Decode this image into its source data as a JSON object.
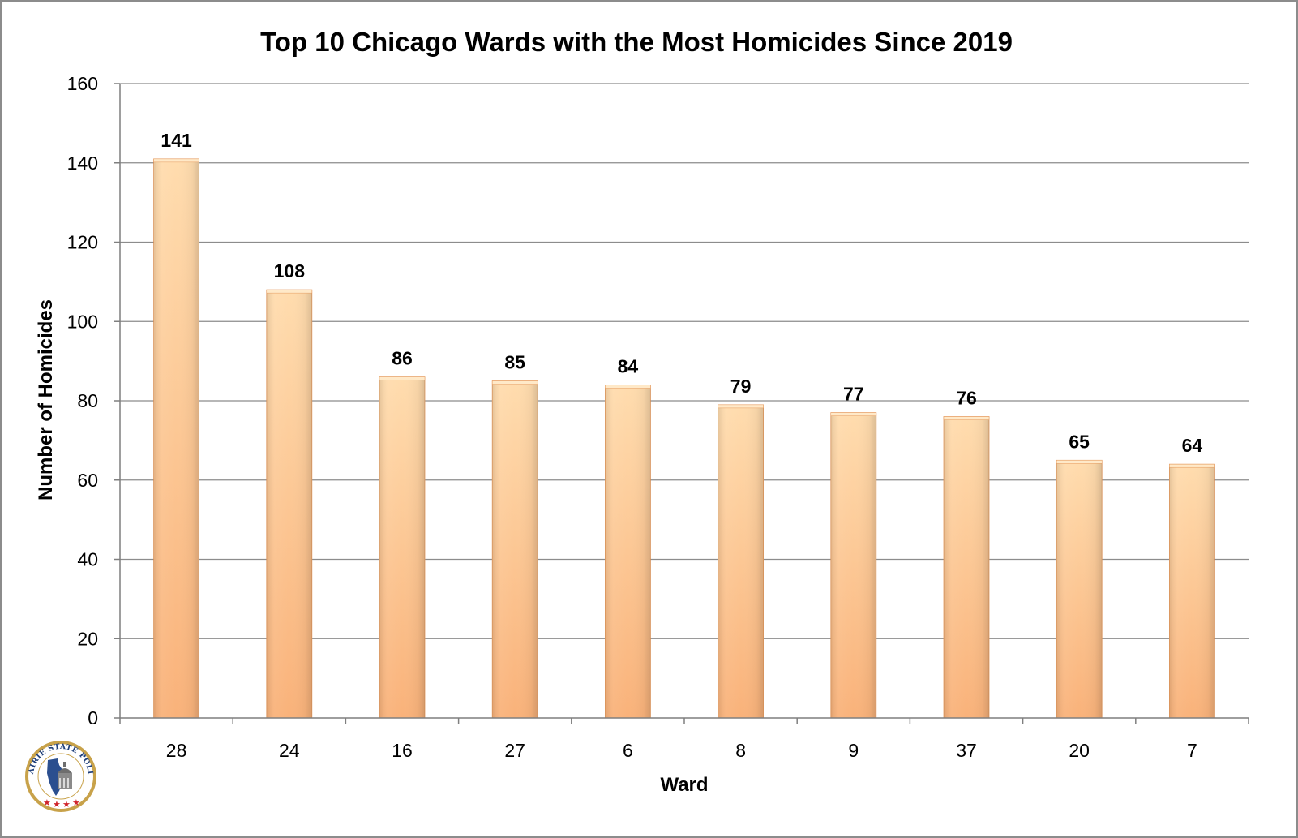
{
  "colors": {
    "bar_top": "#ffdcae",
    "bar_bottom": "#f9b27a",
    "bar_edge": "#e59a5e",
    "grid": "#8c8c8c",
    "axis": "#7f7f7f",
    "seal_gold": "#c8a24a",
    "seal_blue": "#2b4f8f",
    "seal_red": "#d0242b"
  },
  "logo": {
    "text": "PRAIRIE STATE POLICY",
    "icon": "illinois-capitol-seal-icon"
  },
  "chart_data": {
    "type": "bar",
    "title": "Top 10 Chicago Wards with the Most Homicides Since 2019",
    "xlabel": "Ward",
    "ylabel": "Number of Homicides",
    "categories": [
      "28",
      "24",
      "16",
      "27",
      "6",
      "8",
      "9",
      "37",
      "20",
      "7"
    ],
    "values": [
      141,
      108,
      86,
      85,
      84,
      79,
      77,
      76,
      65,
      64
    ],
    "ylim": [
      0,
      160
    ],
    "yticks": [
      0,
      20,
      40,
      60,
      80,
      100,
      120,
      140,
      160
    ],
    "grid": true,
    "legend": "none",
    "data_labels": true
  }
}
